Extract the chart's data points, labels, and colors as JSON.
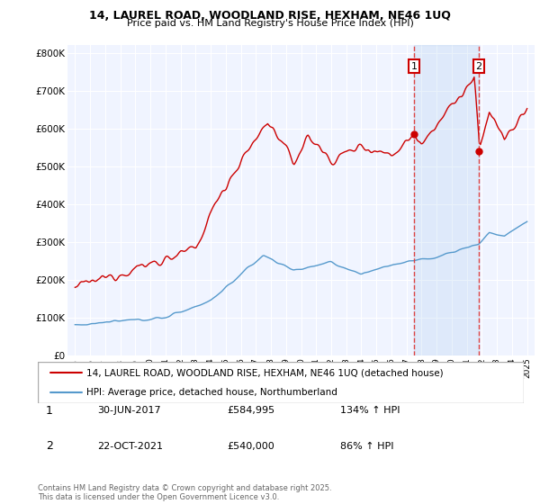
{
  "title_line1": "14, LAUREL ROAD, WOODLAND RISE, HEXHAM, NE46 1UQ",
  "title_line2": "Price paid vs. HM Land Registry's House Price Index (HPI)",
  "ylim": [
    0,
    820000
  ],
  "ytick_values": [
    0,
    100000,
    200000,
    300000,
    400000,
    500000,
    600000,
    700000,
    800000
  ],
  "ytick_labels": [
    "£0",
    "£100K",
    "£200K",
    "£300K",
    "£400K",
    "£500K",
    "£600K",
    "£700K",
    "£800K"
  ],
  "red_color": "#cc0000",
  "blue_color": "#5599cc",
  "vline_color": "#dd4444",
  "shade_color": "#ddeeff",
  "annotation1_label": "1",
  "annotation2_label": "2",
  "sale1_year": 2017.5,
  "sale2_year": 2021.8,
  "sale1_price": 584995,
  "sale2_price": 540000,
  "legend_line1": "14, LAUREL ROAD, WOODLAND RISE, HEXHAM, NE46 1UQ (detached house)",
  "legend_line2": "HPI: Average price, detached house, Northumberland",
  "table_row1": [
    "1",
    "30-JUN-2017",
    "£584,995",
    "134% ↑ HPI"
  ],
  "table_row2": [
    "2",
    "22-OCT-2021",
    "£540,000",
    "86% ↑ HPI"
  ],
  "footnote": "Contains HM Land Registry data © Crown copyright and database right 2025.\nThis data is licensed under the Open Government Licence v3.0.",
  "background_color": "#f0f4ff",
  "grid_color": "#ffffff"
}
